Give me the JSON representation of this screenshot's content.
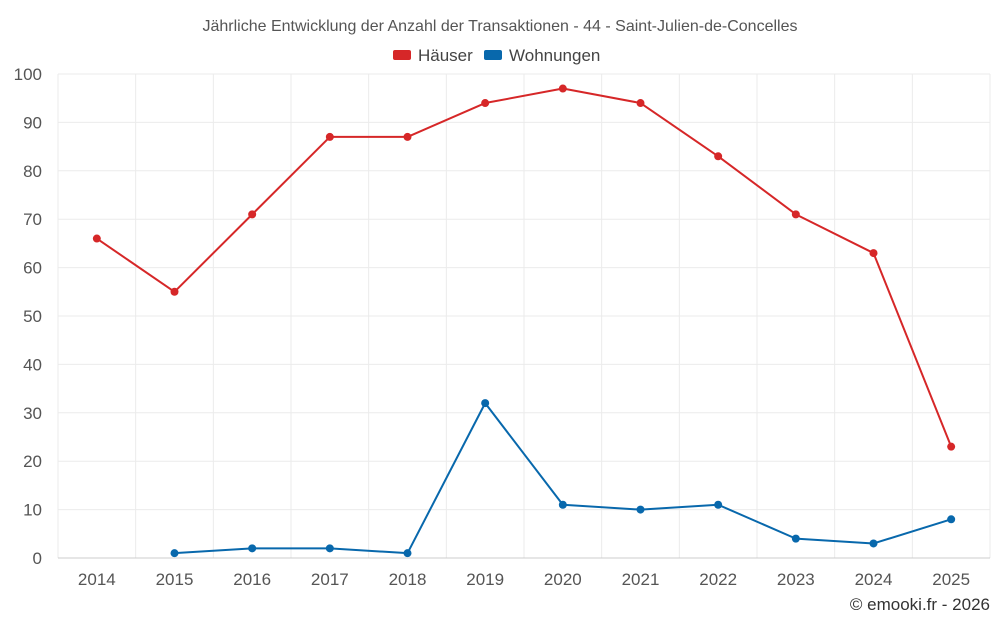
{
  "chart_data": {
    "type": "line",
    "title": "Jährliche Entwicklung der Anzahl der Transaktionen - 44 - Saint-Julien-de-Concelles",
    "categories": [
      "2014",
      "2015",
      "2016",
      "2017",
      "2018",
      "2019",
      "2020",
      "2021",
      "2022",
      "2023",
      "2024",
      "2025"
    ],
    "series": [
      {
        "name": "Häuser",
        "color": "#d62728",
        "values": [
          66,
          55,
          71,
          87,
          87,
          94,
          97,
          94,
          83,
          71,
          63,
          23
        ]
      },
      {
        "name": "Wohnungen",
        "color": "#0868ac",
        "values": [
          null,
          1,
          2,
          2,
          1,
          32,
          11,
          10,
          11,
          4,
          3,
          8
        ]
      }
    ],
    "ylim": [
      0,
      100
    ],
    "yticks": [
      "0",
      "10",
      "20",
      "30",
      "40",
      "50",
      "60",
      "70",
      "80",
      "90",
      "100"
    ],
    "xlabel": "",
    "ylabel": "",
    "grid": true,
    "legend": "top-center"
  },
  "credit": "© emooki.fr - 2026"
}
